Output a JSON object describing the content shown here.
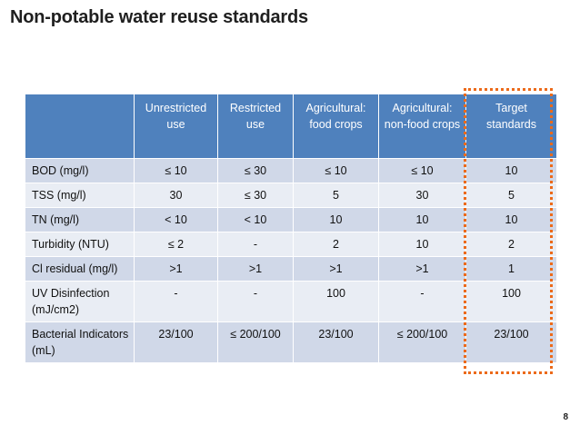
{
  "slide": {
    "title": "Non-potable water reuse standards",
    "page_number": "8"
  },
  "colors": {
    "header_bg": "#4f81bd",
    "row_dark": "#d0d8e8",
    "row_light": "#e9edf4",
    "highlight": "#ec6a1a"
  },
  "table": {
    "headers": [
      "",
      "Unrestricted use",
      "Restricted use",
      "Agricultural: food crops",
      "Agricultural: non-food crops",
      "Target standards"
    ],
    "rows": [
      {
        "label": "BOD (mg/l)",
        "values": [
          "≤ 10",
          "≤ 30",
          "≤ 10",
          "≤ 10",
          "10"
        ]
      },
      {
        "label": "TSS (mg/l)",
        "values": [
          "30",
          "≤ 30",
          "5",
          "30",
          "5"
        ]
      },
      {
        "label": "TN (mg/l)",
        "values": [
          "< 10",
          "< 10",
          "10",
          "10",
          "10"
        ]
      },
      {
        "label": "Turbidity (NTU)",
        "values": [
          "≤ 2",
          "-",
          "2",
          "10",
          "2"
        ]
      },
      {
        "label": "Cl residual (mg/l)",
        "values": [
          ">1",
          ">1",
          ">1",
          ">1",
          "1"
        ]
      },
      {
        "label": "UV Disinfection (mJ/cm2)",
        "values": [
          "-",
          "-",
          "100",
          "-",
          "100"
        ]
      },
      {
        "label": "Bacterial Indicators (mL)",
        "values": [
          "23/100",
          "≤ 200/100",
          "23/100",
          "≤ 200/100",
          "23/100"
        ]
      }
    ]
  }
}
